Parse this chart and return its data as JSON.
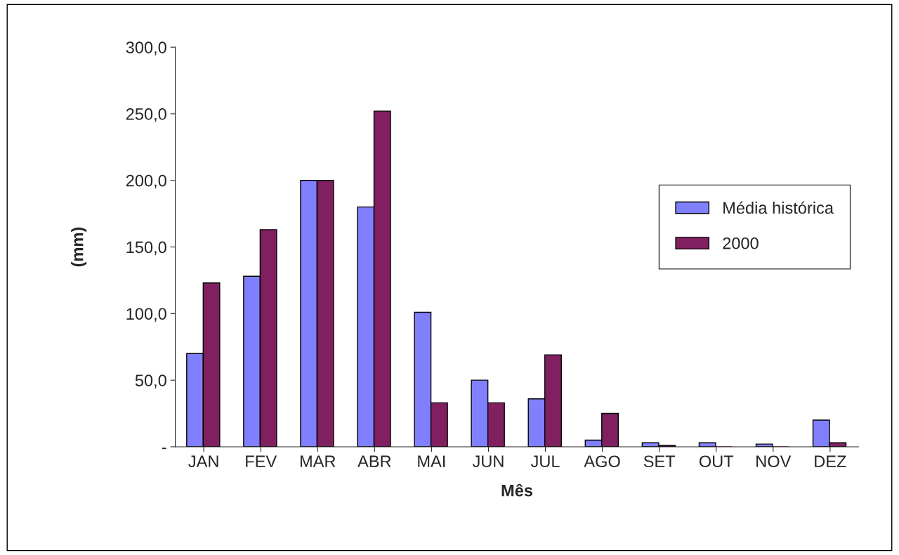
{
  "chart_data": {
    "type": "bar",
    "xlabel": "Mês",
    "ylabel": "(mm)",
    "categories": [
      "JAN",
      "FEV",
      "MAR",
      "ABR",
      "MAI",
      "JUN",
      "JUL",
      "AGO",
      "SET",
      "OUT",
      "NOV",
      "DEZ"
    ],
    "series": [
      {
        "name": "Média histórica",
        "color": "#8080ff",
        "values": [
          70,
          128,
          200,
          180,
          101,
          50,
          36,
          5,
          3,
          3,
          2,
          20
        ]
      },
      {
        "name": "2000",
        "color": "#802060",
        "values": [
          123,
          163,
          200,
          252,
          33,
          33,
          69,
          25,
          1,
          0,
          0,
          3
        ]
      }
    ],
    "ylim": [
      0,
      300
    ],
    "yticks": [
      {
        "value": 0,
        "label": "-"
      },
      {
        "value": 50,
        "label": "50,0"
      },
      {
        "value": 100,
        "label": "100,0"
      },
      {
        "value": 150,
        "label": "150,0"
      },
      {
        "value": 200,
        "label": "200,0"
      },
      {
        "value": 250,
        "label": "250,0"
      },
      {
        "value": 300,
        "label": "300,0"
      }
    ],
    "legend": "right",
    "grid": false
  }
}
